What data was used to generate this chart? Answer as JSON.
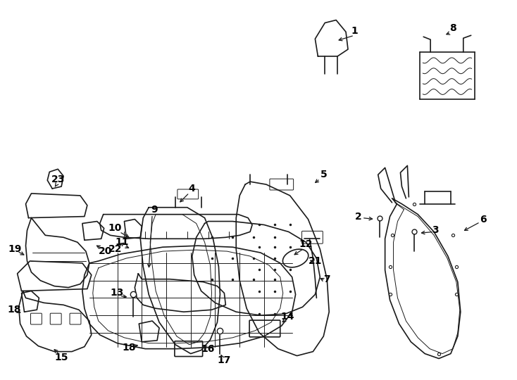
{
  "background_color": "#ffffff",
  "line_color": "#1a1a1a",
  "label_color": "#000000",
  "label_fontsize": 10,
  "fig_width": 7.34,
  "fig_height": 5.4,
  "dpi": 100
}
